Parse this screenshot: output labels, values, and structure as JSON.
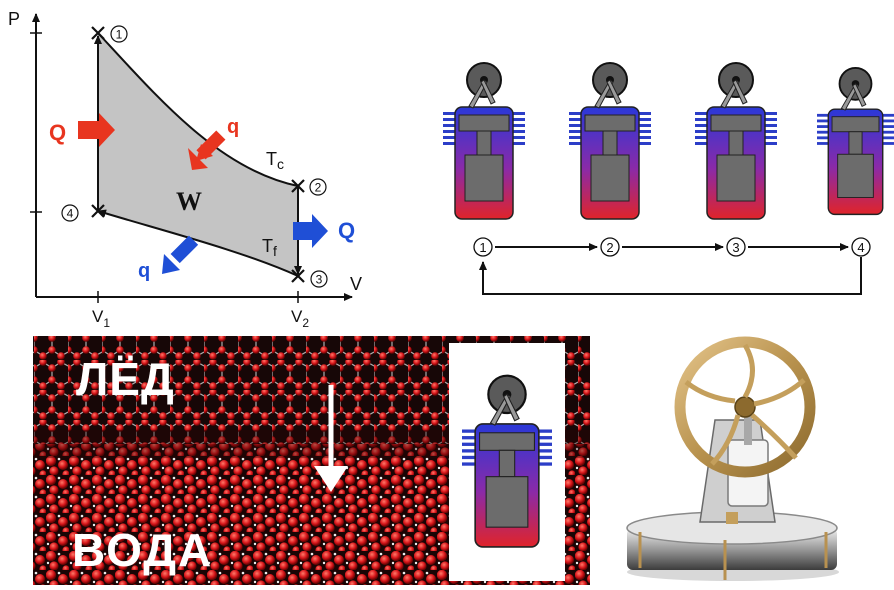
{
  "pv_diagram": {
    "axis_p": "P",
    "axis_v": "V",
    "tick_v1_base": "V",
    "tick_v1_sub": "1",
    "tick_v2_base": "V",
    "tick_v2_sub": "2",
    "state_labels": [
      "1",
      "2",
      "3",
      "4"
    ],
    "work_label": "W",
    "heat_in_label": "Q",
    "heat_out_label": "Q",
    "small_heat_in_label": "q",
    "small_heat_out_label": "q",
    "hot_iso_base": "T",
    "hot_iso_sub": "c",
    "cold_iso_base": "T",
    "cold_iso_sub": "f",
    "colors": {
      "hot": "#e8351f",
      "cold": "#1f4fd6",
      "fill": "#c4c4c4"
    }
  },
  "engine_cycle": {
    "stage_labels": [
      "1",
      "2",
      "3",
      "4"
    ]
  },
  "ice_water": {
    "top_label": "ЛЁД",
    "bottom_label": "ВОДА"
  }
}
